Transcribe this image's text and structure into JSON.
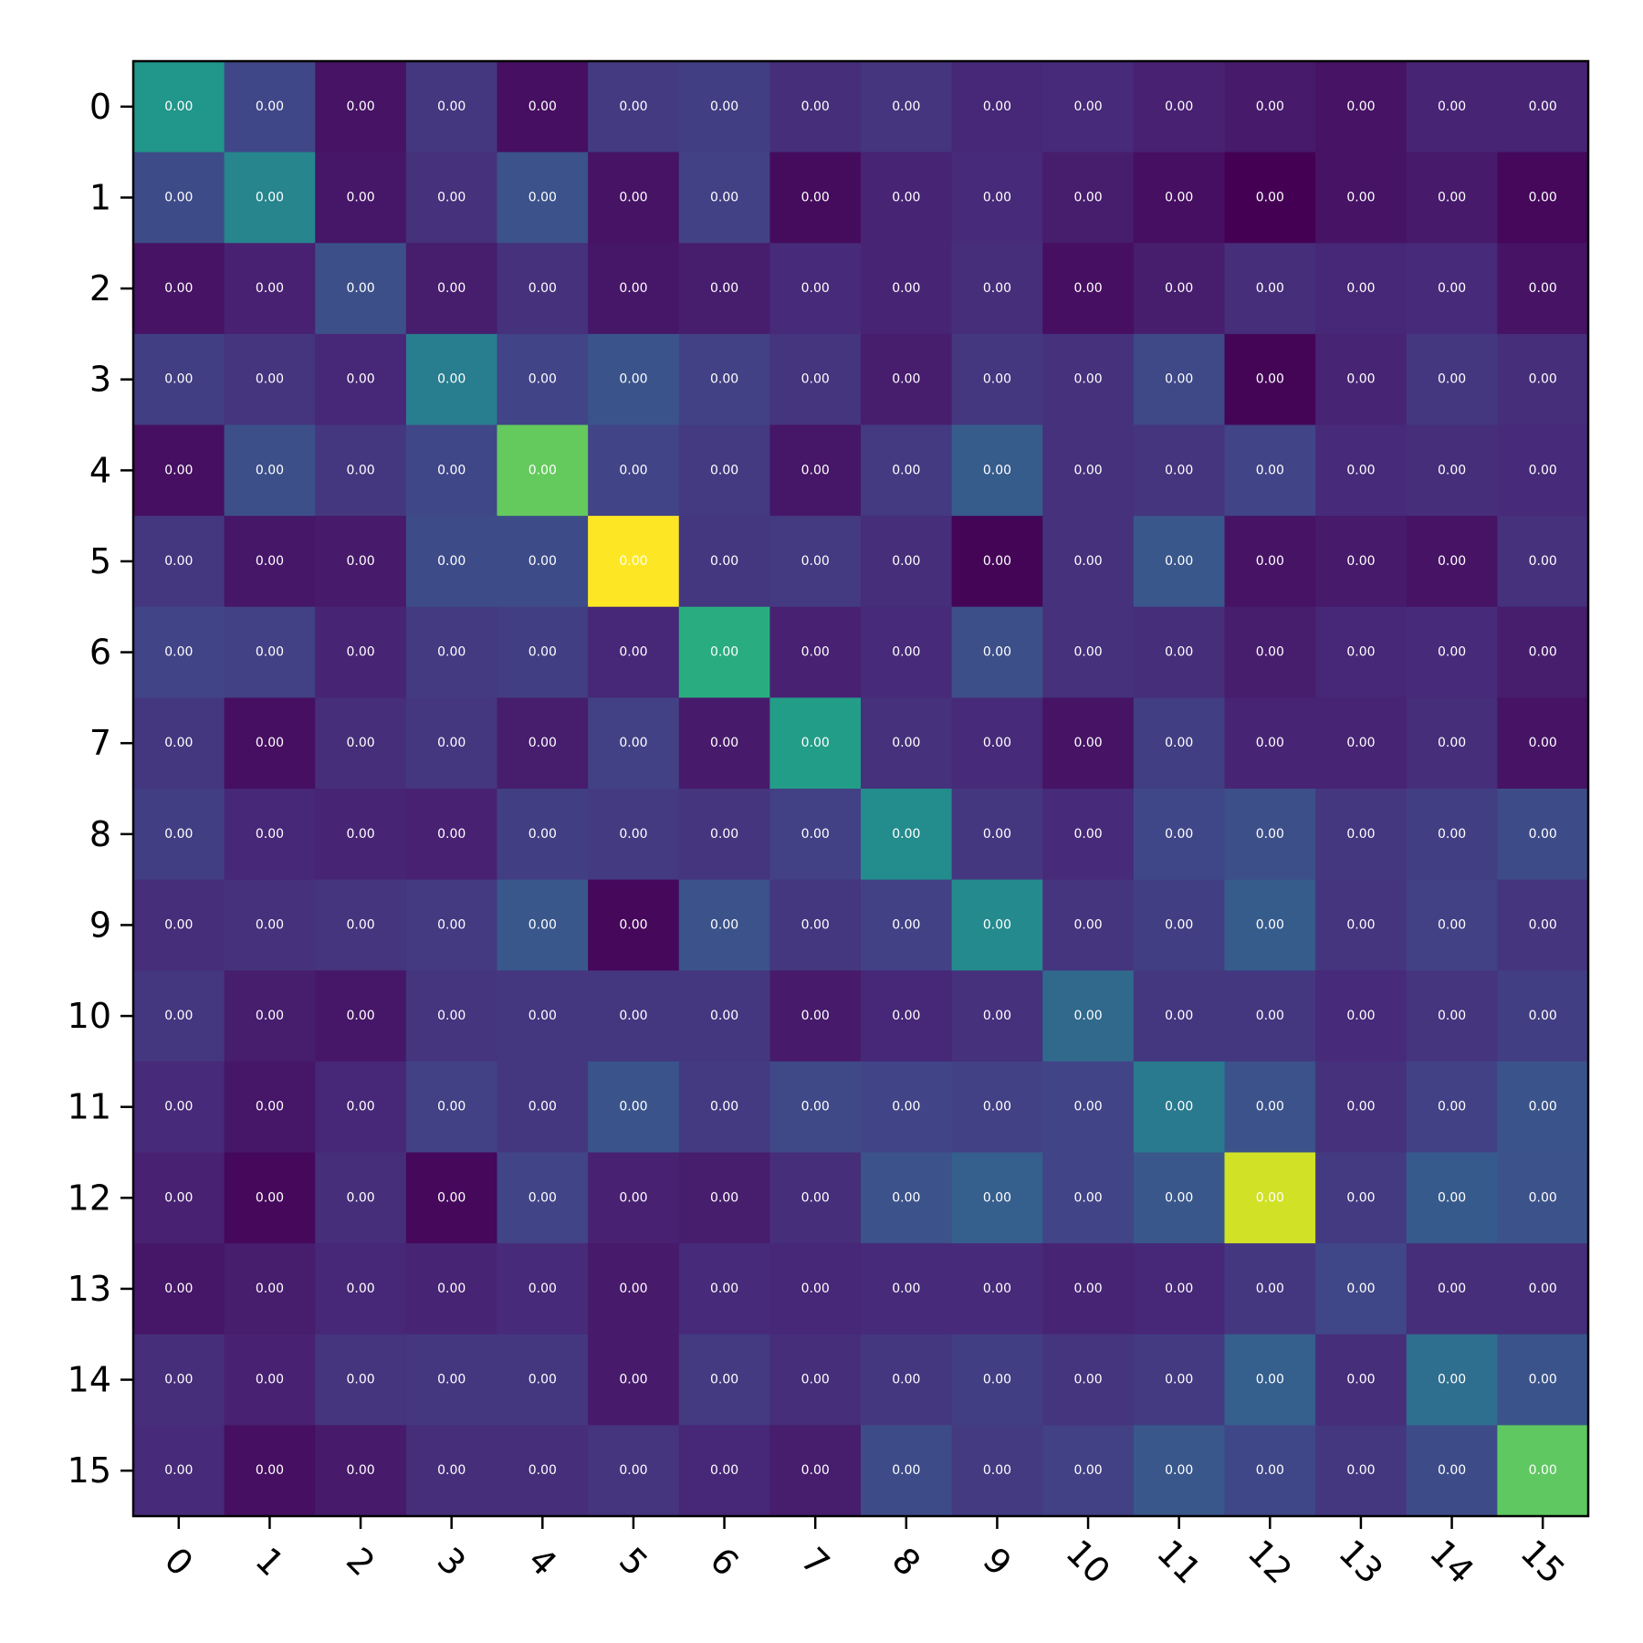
{
  "chart_data": {
    "type": "heatmap",
    "colormap": "viridis",
    "x_categories": [
      "0",
      "1",
      "2",
      "3",
      "4",
      "5",
      "6",
      "7",
      "8",
      "9",
      "10",
      "11",
      "12",
      "13",
      "14",
      "15"
    ],
    "y_categories": [
      "0",
      "1",
      "2",
      "3",
      "4",
      "5",
      "6",
      "7",
      "8",
      "9",
      "10",
      "11",
      "12",
      "13",
      "14",
      "15"
    ],
    "cell_text": "0.00",
    "x_tick_rotation_deg": 45,
    "grid": false,
    "title": "",
    "xlabel": "",
    "ylabel": "",
    "color_range": [
      0,
      1
    ],
    "intensity": [
      [
        0.52,
        0.21,
        0.05,
        0.16,
        0.04,
        0.17,
        0.18,
        0.13,
        0.15,
        0.11,
        0.12,
        0.09,
        0.07,
        0.05,
        0.1,
        0.1
      ],
      [
        0.23,
        0.45,
        0.06,
        0.14,
        0.25,
        0.05,
        0.19,
        0.03,
        0.1,
        0.12,
        0.08,
        0.04,
        0.0,
        0.05,
        0.07,
        0.02
      ],
      [
        0.05,
        0.09,
        0.24,
        0.08,
        0.14,
        0.06,
        0.08,
        0.12,
        0.1,
        0.13,
        0.04,
        0.08,
        0.13,
        0.11,
        0.12,
        0.05
      ],
      [
        0.18,
        0.15,
        0.11,
        0.42,
        0.2,
        0.26,
        0.19,
        0.15,
        0.08,
        0.16,
        0.14,
        0.22,
        0.01,
        0.1,
        0.16,
        0.13
      ],
      [
        0.04,
        0.24,
        0.16,
        0.21,
        0.76,
        0.2,
        0.17,
        0.06,
        0.17,
        0.29,
        0.14,
        0.15,
        0.2,
        0.12,
        0.13,
        0.12
      ],
      [
        0.16,
        0.06,
        0.07,
        0.23,
        0.23,
        1.0,
        0.16,
        0.17,
        0.13,
        0.01,
        0.14,
        0.27,
        0.05,
        0.07,
        0.05,
        0.14
      ],
      [
        0.2,
        0.19,
        0.1,
        0.17,
        0.18,
        0.11,
        0.62,
        0.09,
        0.12,
        0.24,
        0.14,
        0.13,
        0.08,
        0.11,
        0.12,
        0.08
      ],
      [
        0.16,
        0.04,
        0.13,
        0.16,
        0.08,
        0.19,
        0.07,
        0.55,
        0.14,
        0.12,
        0.05,
        0.18,
        0.1,
        0.1,
        0.13,
        0.05
      ],
      [
        0.18,
        0.11,
        0.1,
        0.09,
        0.18,
        0.17,
        0.15,
        0.19,
        0.48,
        0.16,
        0.12,
        0.21,
        0.24,
        0.16,
        0.18,
        0.23
      ],
      [
        0.13,
        0.14,
        0.15,
        0.17,
        0.27,
        0.02,
        0.25,
        0.16,
        0.19,
        0.47,
        0.15,
        0.18,
        0.29,
        0.15,
        0.19,
        0.15
      ],
      [
        0.16,
        0.08,
        0.06,
        0.15,
        0.16,
        0.16,
        0.16,
        0.07,
        0.11,
        0.14,
        0.34,
        0.16,
        0.16,
        0.12,
        0.15,
        0.18
      ],
      [
        0.12,
        0.06,
        0.11,
        0.19,
        0.16,
        0.26,
        0.17,
        0.22,
        0.2,
        0.19,
        0.2,
        0.41,
        0.25,
        0.14,
        0.19,
        0.26
      ],
      [
        0.09,
        0.02,
        0.13,
        0.02,
        0.2,
        0.09,
        0.08,
        0.13,
        0.25,
        0.3,
        0.2,
        0.27,
        0.93,
        0.17,
        0.28,
        0.25
      ],
      [
        0.06,
        0.08,
        0.11,
        0.1,
        0.12,
        0.07,
        0.12,
        0.11,
        0.12,
        0.12,
        0.1,
        0.11,
        0.16,
        0.21,
        0.13,
        0.13
      ],
      [
        0.13,
        0.09,
        0.15,
        0.16,
        0.16,
        0.07,
        0.17,
        0.13,
        0.16,
        0.18,
        0.15,
        0.17,
        0.3,
        0.13,
        0.36,
        0.26
      ],
      [
        0.12,
        0.04,
        0.07,
        0.13,
        0.13,
        0.15,
        0.11,
        0.08,
        0.23,
        0.17,
        0.19,
        0.27,
        0.21,
        0.16,
        0.23,
        0.75
      ]
    ]
  }
}
